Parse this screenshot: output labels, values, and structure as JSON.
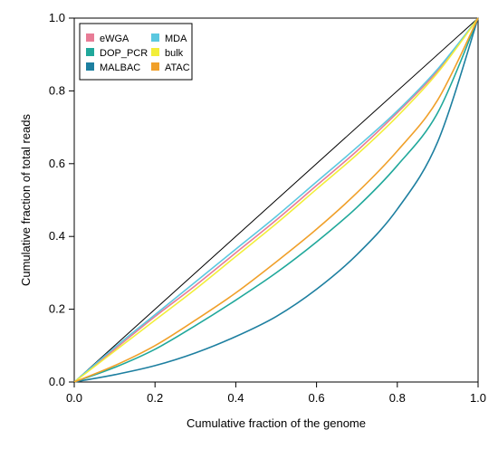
{
  "chart_data": {
    "type": "line",
    "xlabel": "Cumulative fraction of the genome",
    "ylabel": "Cumulative fraction of total reads",
    "xlim": [
      0,
      1
    ],
    "ylim": [
      0,
      1
    ],
    "xticks": [
      "0.0",
      "0.2",
      "0.4",
      "0.6",
      "0.8",
      "1.0"
    ],
    "yticks": [
      "0.0",
      "0.2",
      "0.4",
      "0.6",
      "0.8",
      "1.0"
    ],
    "grid": false,
    "legend_position": "top-left",
    "x": [
      0,
      0.1,
      0.2,
      0.3,
      0.4,
      0.5,
      0.6,
      0.7,
      0.8,
      0.9,
      1.0
    ],
    "reference_line": {
      "x": [
        0,
        1
      ],
      "y": [
        0,
        1
      ],
      "color": "#000000"
    },
    "series": [
      {
        "name": "eWGA",
        "color": "#E87C96",
        "values": [
          0,
          0.09,
          0.18,
          0.265,
          0.355,
          0.445,
          0.54,
          0.635,
          0.74,
          0.855,
          1.0
        ]
      },
      {
        "name": "MDA",
        "color": "#5BC8E0",
        "values": [
          0,
          0.095,
          0.185,
          0.275,
          0.365,
          0.455,
          0.55,
          0.645,
          0.745,
          0.86,
          1.0
        ]
      },
      {
        "name": "DOP_PCR",
        "color": "#20A89B",
        "values": [
          0,
          0.04,
          0.09,
          0.155,
          0.225,
          0.3,
          0.385,
          0.48,
          0.595,
          0.74,
          1.0
        ]
      },
      {
        "name": "bulk",
        "color": "#F2EE3A",
        "values": [
          0,
          0.085,
          0.17,
          0.255,
          0.345,
          0.435,
          0.53,
          0.625,
          0.73,
          0.85,
          1.0
        ]
      },
      {
        "name": "MALBAC",
        "color": "#1D7FA0",
        "values": [
          0,
          0.02,
          0.045,
          0.08,
          0.125,
          0.18,
          0.255,
          0.35,
          0.475,
          0.66,
          1.0
        ]
      },
      {
        "name": "ATAC",
        "color": "#F0A02A",
        "values": [
          0,
          0.045,
          0.1,
          0.17,
          0.245,
          0.33,
          0.42,
          0.52,
          0.635,
          0.775,
          1.0
        ]
      }
    ],
    "legend_layout": [
      [
        "eWGA",
        "MDA"
      ],
      [
        "DOP_PCR",
        "bulk"
      ],
      [
        "MALBAC",
        "ATAC"
      ]
    ]
  }
}
